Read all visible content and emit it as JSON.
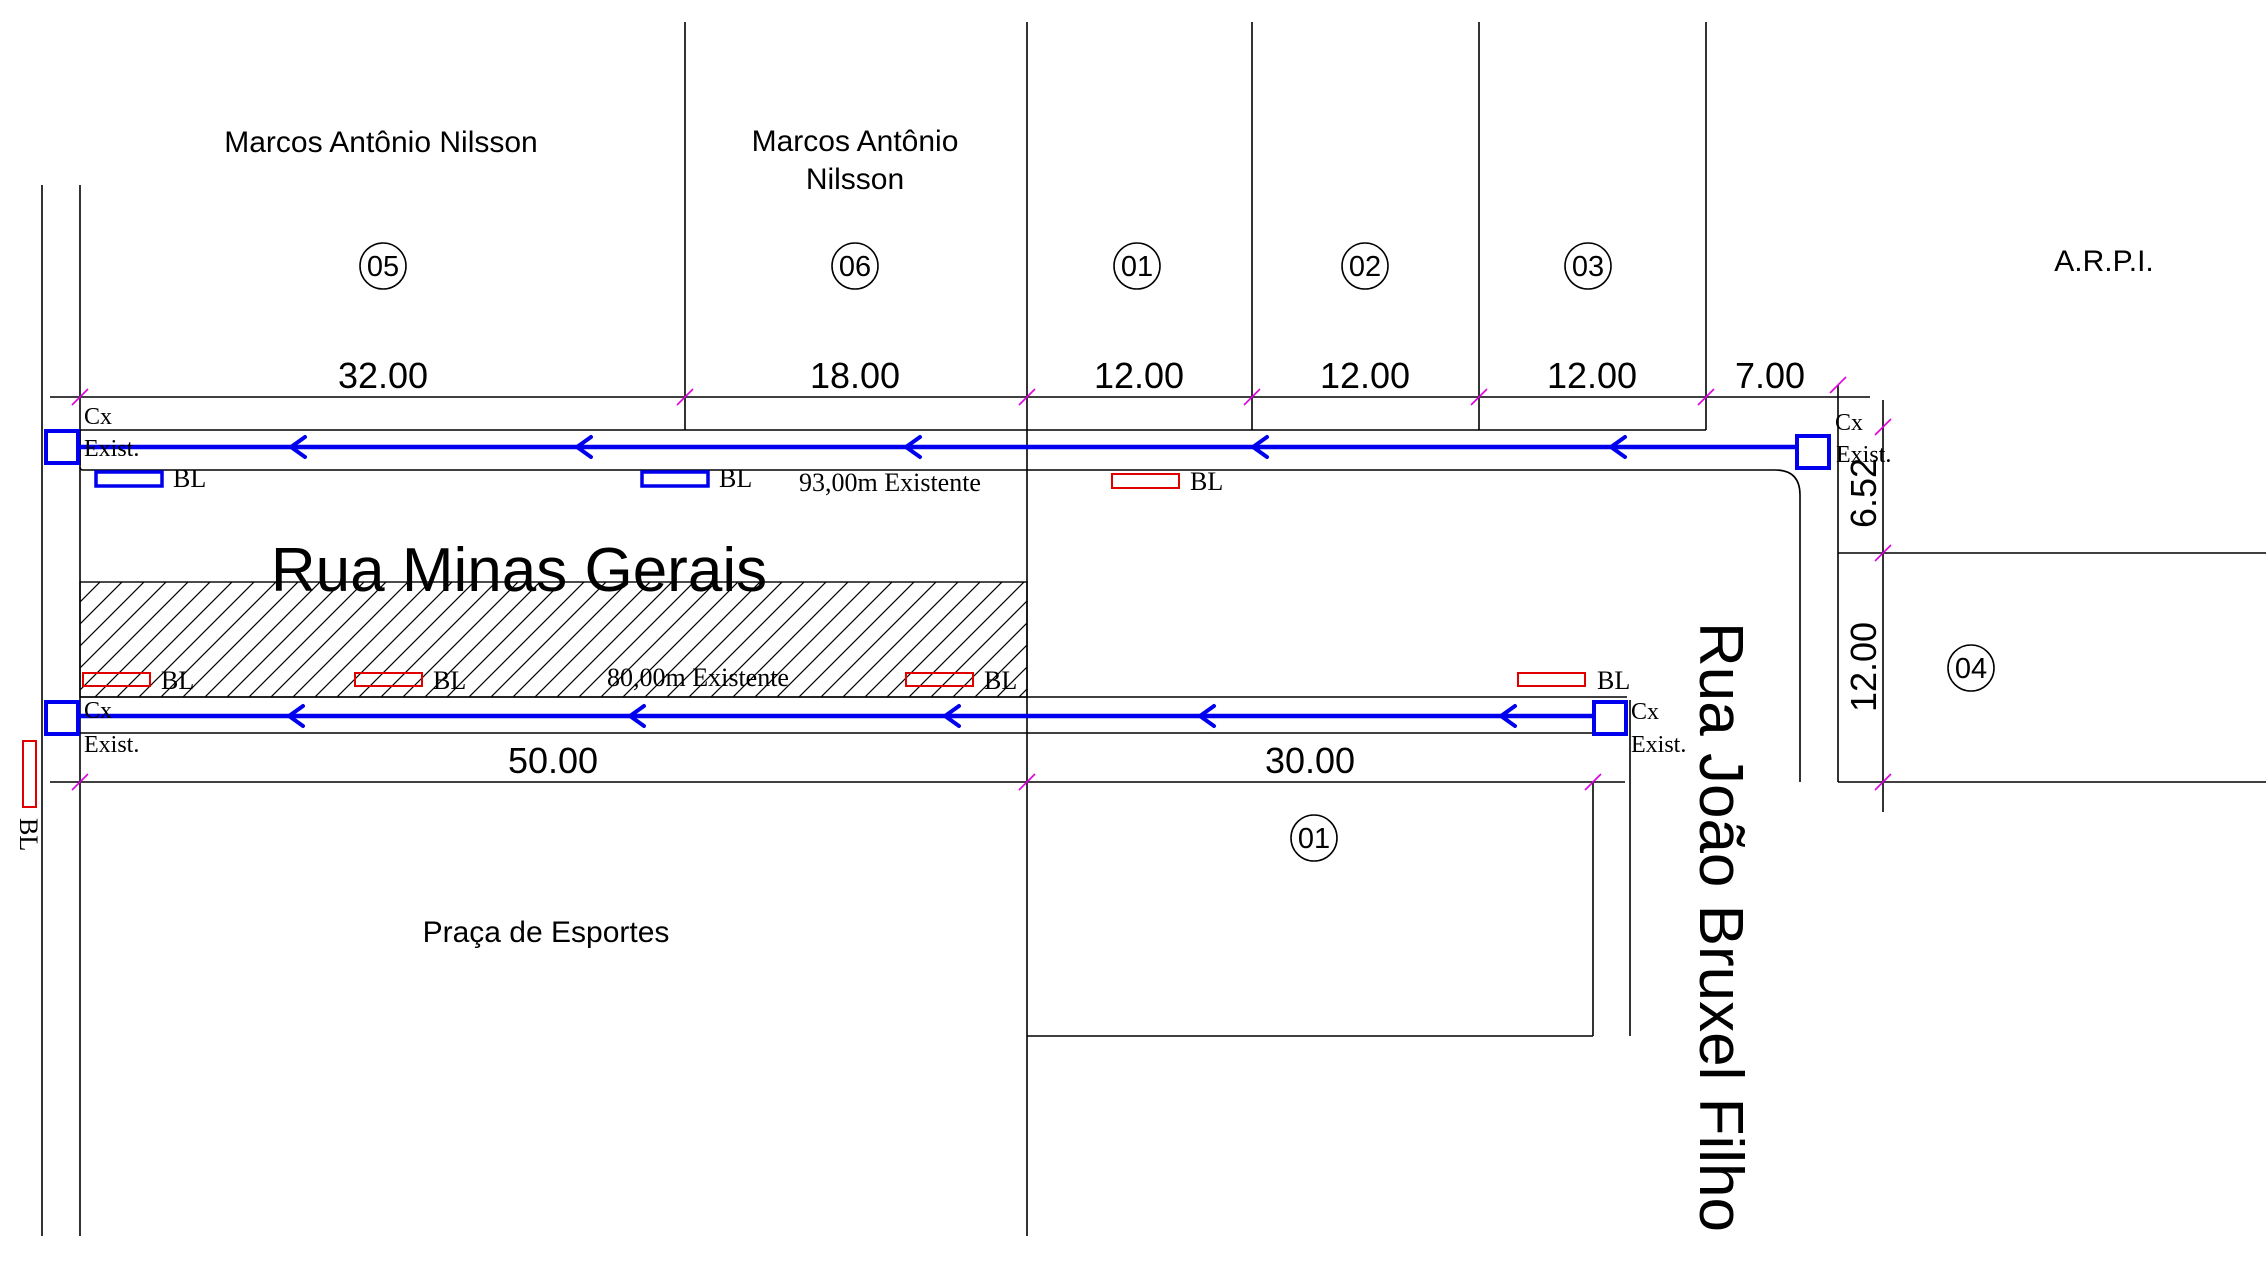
{
  "owners": {
    "lot05_owner": "Marcos Antônio Nilsson",
    "lot06_owner_line1": "Marcos Antônio",
    "lot06_owner_line2": "Nilsson",
    "arpi": "A.R.P.I."
  },
  "lots": {
    "l05": "05",
    "l06": "06",
    "l01_top": "01",
    "l02": "02",
    "l03": "03",
    "l04": "04",
    "l01_bottom": "01"
  },
  "dimensions": {
    "top": [
      "32.00",
      "18.00",
      "12.00",
      "12.00",
      "12.00",
      "7.00"
    ],
    "bottom": [
      "50.00",
      "30.00"
    ],
    "right": [
      "6.52",
      "12.00"
    ]
  },
  "streets": {
    "minas_gerais": "Rua Minas Gerais",
    "joao_bruxel": "Rua João Bruxel Filho"
  },
  "pipes": {
    "top_length": "93,00m Existente",
    "bottom_length": "80,00m Existente"
  },
  "labels": {
    "bl": "BL",
    "cx": "Cx",
    "exist": "Exist.",
    "praca": "Praça de Esportes"
  },
  "colors": {
    "pipe": "#0000ee",
    "new_inlet": "#e00000",
    "tick": "#e000e0"
  }
}
